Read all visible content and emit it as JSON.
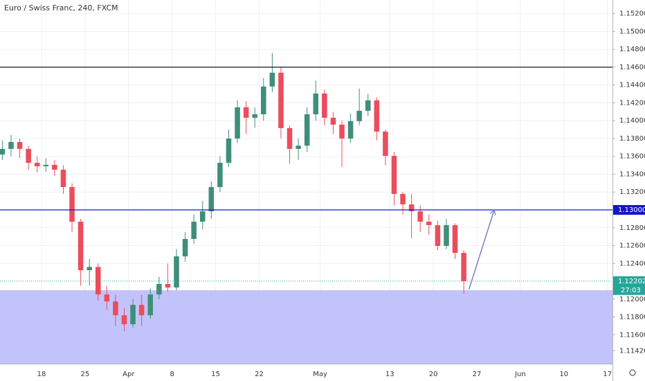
{
  "chart_data": {
    "type": "candlestick",
    "title": "Euro / Swiss Franc, 240, FXCM",
    "up_color": "#3f8f78",
    "down_color": "#eb4d5c",
    "grid": true,
    "grid_color": "#eef0f6",
    "xlim": [
      -4.77,
      65.58
    ],
    "xticks": [
      {
        "value": 0,
        "label": "18"
      },
      {
        "value": 5,
        "label": "25"
      },
      {
        "value": 10,
        "label": "Apr"
      },
      {
        "value": 15,
        "label": "8"
      },
      {
        "value": 20,
        "label": "15"
      },
      {
        "value": 25,
        "label": "22"
      },
      {
        "value": 32,
        "label": "May"
      },
      {
        "value": 40,
        "label": "13"
      },
      {
        "value": 45,
        "label": "20"
      },
      {
        "value": 50,
        "label": "27"
      },
      {
        "value": 55,
        "label": "Jun"
      },
      {
        "value": 60,
        "label": "10"
      },
      {
        "value": 65,
        "label": "17"
      }
    ],
    "ylim": [
      1.11276,
      1.15353
    ],
    "yticks": [
      {
        "value": 1.152,
        "label": "1.15200"
      },
      {
        "value": 1.15,
        "label": "1.15000"
      },
      {
        "value": 1.148,
        "label": "1.14800"
      },
      {
        "value": 1.146,
        "label": "1.14600"
      },
      {
        "value": 1.144,
        "label": "1.14400"
      },
      {
        "value": 1.142,
        "label": "1.14200"
      },
      {
        "value": 1.14,
        "label": "1.14000"
      },
      {
        "value": 1.138,
        "label": "1.13800"
      },
      {
        "value": 1.136,
        "label": "1.13600"
      },
      {
        "value": 1.134,
        "label": "1.13400"
      },
      {
        "value": 1.132,
        "label": "1.13200"
      },
      {
        "value": 1.128,
        "label": "1.12800"
      },
      {
        "value": 1.126,
        "label": "1.12600"
      },
      {
        "value": 1.124,
        "label": "1.12400"
      },
      {
        "value": 1.12,
        "label": "1.12000"
      },
      {
        "value": 1.118,
        "label": "1.11800"
      },
      {
        "value": 1.116,
        "label": "1.11600"
      },
      {
        "value": 1.1142,
        "label": "1.11420"
      }
    ],
    "x": [
      -4.5,
      -3.5,
      -2.5,
      -1.5,
      -0.5,
      0.5,
      1.5,
      2.5,
      3.5,
      4.5,
      5.5,
      6.5,
      7.5,
      8.5,
      9.5,
      10.5,
      11.5,
      12.5,
      13.5,
      14.5,
      15.5,
      16.5,
      17.5,
      18.5,
      19.5,
      20.5,
      21.5,
      22.5,
      23.5,
      24.5,
      25.5,
      26.5,
      27.5,
      28.5,
      29.5,
      30.5,
      31.5,
      32.5,
      33.5,
      34.5,
      35.5,
      36.5,
      37.5,
      38.5,
      39.5,
      40.5,
      41.5,
      42.5,
      43.5,
      44.5,
      45.5,
      46.5,
      47.5,
      48.5
    ],
    "open": [
      1.1362,
      1.13684,
      1.13761,
      1.13684,
      1.13528,
      1.13489,
      1.13505,
      1.13451,
      1.13256,
      1.12868,
      1.12324,
      1.1236,
      1.12052,
      1.11974,
      1.11819,
      1.11718,
      1.11936,
      1.11819,
      1.12052,
      1.12169,
      1.1213,
      1.12479,
      1.12674,
      1.12868,
      1.12984,
      1.13256,
      1.13528,
      1.138,
      1.1415,
      1.14033,
      1.14072,
      1.14383,
      1.14538,
      1.13917,
      1.13684,
      1.1372,
      1.14072,
      1.14305,
      1.14033,
      1.13956,
      1.138,
      1.13995,
      1.14111,
      1.14228,
      1.13878,
      1.13606,
      1.13179,
      1.13062,
      1.12984,
      1.12868,
      1.12829,
      1.12596,
      1.12829,
      1.12518
    ],
    "high": [
      1.1378,
      1.1384,
      1.138,
      1.1372,
      1.136,
      1.1358,
      1.1356,
      1.135,
      1.133,
      1.129,
      1.1245,
      1.124,
      1.1215,
      1.1205,
      1.119,
      1.12,
      1.1205,
      1.1212,
      1.1225,
      1.124,
      1.1256,
      1.1275,
      1.1295,
      1.131,
      1.1332,
      1.136,
      1.139,
      1.1423,
      1.1422,
      1.1415,
      1.1448,
      1.1476,
      1.146,
      1.1395,
      1.138,
      1.1415,
      1.1445,
      1.1435,
      1.141,
      1.14,
      1.1408,
      1.1436,
      1.143,
      1.1426,
      1.139,
      1.1365,
      1.132,
      1.1318,
      1.1305,
      1.1295,
      1.1288,
      1.129,
      1.1285,
      1.1255
    ],
    "low": [
      1.1356,
      1.136,
      1.1358,
      1.1345,
      1.1342,
      1.1343,
      1.1338,
      1.1318,
      1.1275,
      1.1215,
      1.1215,
      1.1198,
      1.1188,
      1.117,
      1.1164,
      1.1168,
      1.117,
      1.1178,
      1.12,
      1.1208,
      1.121,
      1.1242,
      1.1262,
      1.1278,
      1.129,
      1.132,
      1.1348,
      1.1375,
      1.1385,
      1.1392,
      1.14,
      1.1432,
      1.138,
      1.1352,
      1.1356,
      1.1365,
      1.14,
      1.1395,
      1.1385,
      1.1348,
      1.1375,
      1.1395,
      1.1405,
      1.1378,
      1.135,
      1.1305,
      1.1295,
      1.1268,
      1.1275,
      1.1272,
      1.1255,
      1.1256,
      1.1245,
      1.1206
    ],
    "close": [
      1.13684,
      1.13761,
      1.13684,
      1.13528,
      1.13489,
      1.13505,
      1.13451,
      1.13256,
      1.12868,
      1.12324,
      1.1236,
      1.12052,
      1.11974,
      1.11819,
      1.11718,
      1.11936,
      1.11819,
      1.12052,
      1.12169,
      1.1213,
      1.12479,
      1.12674,
      1.12868,
      1.12984,
      1.13256,
      1.13528,
      1.138,
      1.1415,
      1.14033,
      1.14072,
      1.14383,
      1.14538,
      1.13917,
      1.13684,
      1.1372,
      1.14072,
      1.14305,
      1.14033,
      1.13956,
      1.138,
      1.13995,
      1.14111,
      1.14228,
      1.13878,
      1.13606,
      1.13179,
      1.13062,
      1.12984,
      1.12868,
      1.12829,
      1.12596,
      1.12829,
      1.12518,
      1.12202
    ],
    "levels": [
      {
        "price": 1.146,
        "color": "#131722"
      },
      {
        "price": 1.13,
        "color": "#1515c8",
        "label": "1.13000"
      }
    ],
    "zone": {
      "top": 1.121,
      "color": "#b9b9fb"
    },
    "arrow": {
      "x": [
        49.1,
        52.0
      ],
      "y": [
        1.1211,
        1.13
      ],
      "color": "#7b7fc8"
    },
    "last_price": {
      "price": 1.12202,
      "label": "1.12202",
      "countdown": "27:03",
      "color": "#26a69a"
    }
  }
}
